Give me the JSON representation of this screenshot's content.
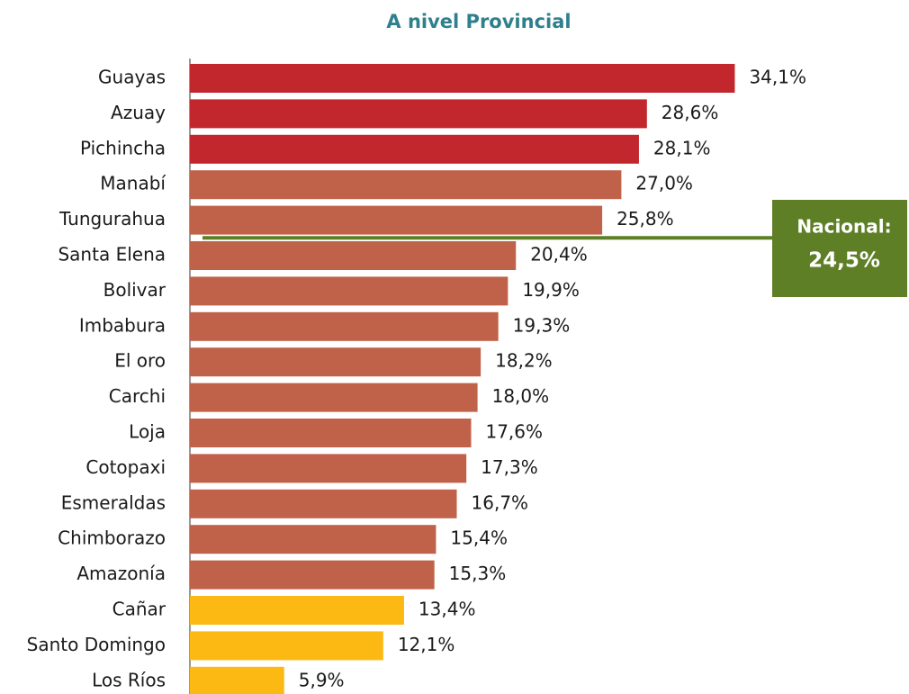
{
  "chart_data": {
    "type": "bar",
    "orientation": "horizontal",
    "title": "A nivel Provincial",
    "categories": [
      "Guayas",
      "Azuay",
      "Pichincha",
      "Manabí",
      "Tungurahua",
      "Santa Elena",
      "Bolivar",
      "Imbabura",
      "El oro",
      "Carchi",
      "Loja",
      "Cotopaxi",
      "Esmeraldas",
      "Chimborazo",
      "Amazonía",
      "Cañar",
      "Santo Domingo",
      "Los Ríos"
    ],
    "values": [
      34.1,
      28.6,
      28.1,
      27.0,
      25.8,
      20.4,
      19.9,
      19.3,
      18.2,
      18.0,
      17.6,
      17.3,
      16.7,
      15.4,
      15.3,
      13.4,
      12.1,
      5.9
    ],
    "value_labels": [
      "34,1%",
      "28,6%",
      "28,1%",
      "27,0%",
      "25,8%",
      "20,4%",
      "19,9%",
      "19,3%",
      "18,2%",
      "18,0%",
      "17,6%",
      "17,3%",
      "16,7%",
      "15,4%",
      "15,3%",
      "13,4%",
      "12,1%",
      "5,9%"
    ],
    "colors": [
      "#c1272d",
      "#c1272d",
      "#c1272d",
      "#c0624a",
      "#c0624a",
      "#c0624a",
      "#c0624a",
      "#c0624a",
      "#c0624a",
      "#c0624a",
      "#c0624a",
      "#c0624a",
      "#c0624a",
      "#c0624a",
      "#c0624a",
      "#fdb913",
      "#fdb913",
      "#fdb913"
    ],
    "xlim": [
      0,
      45
    ],
    "reference": {
      "label": "Nacional:",
      "value": 24.5,
      "value_label": "24,5%",
      "color": "#5e7f26"
    }
  }
}
